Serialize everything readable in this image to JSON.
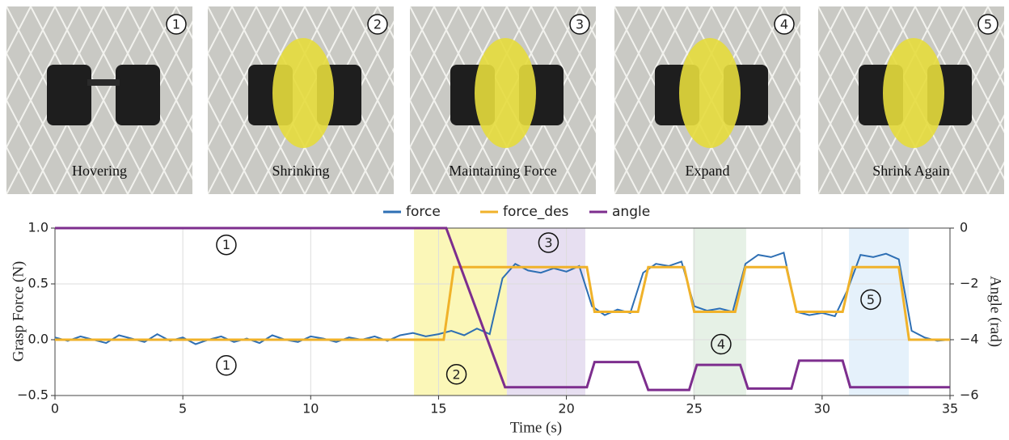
{
  "panels": [
    {
      "step": "1",
      "caption": "Hovering"
    },
    {
      "step": "2",
      "caption": "Shrinking"
    },
    {
      "step": "3",
      "caption": "Maintaining Force"
    },
    {
      "step": "4",
      "caption": "Expand"
    },
    {
      "step": "5",
      "caption": "Shrink Again"
    }
  ],
  "chart_data": {
    "type": "line",
    "x_label": "Time (s)",
    "y_label": "Grasp Force (N)",
    "y2_label": "Angle (rad)",
    "x": [
      0,
      0.5,
      1,
      1.5,
      2,
      2.5,
      3,
      3.5,
      4,
      4.5,
      5,
      5.5,
      6,
      6.5,
      7,
      7.5,
      8,
      8.5,
      9,
      9.5,
      10,
      10.5,
      11,
      11.5,
      12,
      12.5,
      13,
      13.5,
      14,
      14.5,
      15,
      15.5,
      16,
      16.5,
      17,
      17.5,
      18,
      18.5,
      19,
      19.5,
      20,
      20.5,
      21,
      21.5,
      22,
      22.5,
      23,
      23.5,
      24,
      24.5,
      25,
      25.5,
      26,
      26.5,
      27,
      27.5,
      28,
      28.5,
      29,
      29.5,
      30,
      30.5,
      31,
      31.5,
      32,
      32.5,
      33,
      33.5,
      34,
      34.5,
      35
    ],
    "series": [
      {
        "name": "force",
        "color": "#2e6fb4",
        "values": [
          0.02,
          -0.01,
          0.03,
          0.0,
          -0.03,
          0.04,
          0.01,
          -0.02,
          0.05,
          -0.01,
          0.02,
          -0.04,
          0.0,
          0.03,
          -0.02,
          0.01,
          -0.03,
          0.04,
          0.0,
          -0.02,
          0.03,
          0.01,
          -0.02,
          0.02,
          0.0,
          0.03,
          -0.01,
          0.04,
          0.06,
          0.03,
          0.05,
          0.08,
          0.04,
          0.1,
          0.05,
          0.55,
          0.68,
          0.62,
          0.6,
          0.64,
          0.61,
          0.66,
          0.3,
          0.22,
          0.27,
          0.24,
          0.6,
          0.68,
          0.66,
          0.7,
          0.3,
          0.26,
          0.28,
          0.25,
          0.68,
          0.76,
          0.74,
          0.78,
          0.25,
          0.22,
          0.24,
          0.21,
          0.45,
          0.76,
          0.74,
          0.77,
          0.72,
          0.08,
          0.02,
          -0.01,
          0.0
        ]
      },
      {
        "name": "force_des",
        "color": "#f0b22a",
        "x": [
          0,
          15.2,
          15.6,
          20.8,
          21.1,
          22.8,
          23.2,
          24.6,
          25.0,
          26.6,
          27.0,
          28.6,
          29.0,
          30.8,
          31.2,
          33.0,
          33.4,
          35
        ],
        "values": [
          0,
          0,
          0.65,
          0.65,
          0.25,
          0.25,
          0.65,
          0.65,
          0.25,
          0.25,
          0.65,
          0.65,
          0.25,
          0.25,
          0.65,
          0.65,
          0,
          0
        ]
      },
      {
        "name": "angle",
        "color": "#7d2e8e",
        "axis": "y2",
        "x": [
          0,
          15.3,
          17.6,
          20.8,
          21.1,
          22.8,
          23.2,
          24.8,
          25.1,
          26.8,
          27.1,
          28.8,
          29.1,
          30.8,
          31.1,
          35
        ],
        "values": [
          0,
          0,
          -5.7,
          -5.7,
          -4.8,
          -4.8,
          -5.8,
          -5.8,
          -4.9,
          -4.9,
          -5.75,
          -5.75,
          -4.75,
          -4.75,
          -5.7,
          -5.7
        ]
      }
    ],
    "regions": [
      {
        "x": [
          14.04,
          17.67
        ],
        "color": "#fbf6b0"
      },
      {
        "x": [
          17.67,
          20.74
        ],
        "color": "#e4dcef"
      },
      {
        "x": [
          24.95,
          27.03
        ],
        "color": "#e3efe3"
      },
      {
        "x": [
          31.05,
          33.39
        ],
        "color": "#e2effb"
      }
    ],
    "annotations": [
      {
        "text": "1",
        "x": 6.7,
        "y": 0.85
      },
      {
        "text": "1",
        "x": 6.7,
        "y": -0.23
      },
      {
        "text": "2",
        "x": 15.7,
        "y": -0.31
      },
      {
        "text": "3",
        "x": 19.3,
        "y": 0.87
      },
      {
        "text": "4",
        "x": 26.05,
        "y": -0.04
      },
      {
        "text": "5",
        "x": 31.9,
        "y": 0.36
      }
    ],
    "xlim": [
      0,
      35
    ],
    "xticks": [
      0,
      5,
      10,
      15,
      20,
      25,
      30,
      35
    ],
    "ylim": [
      -0.5,
      1.0
    ],
    "yticks": [
      {
        "value": -0.5,
        "label": "−0.5"
      },
      {
        "value": 0,
        "label": "0.0"
      },
      0.5,
      {
        "value": 1,
        "label": "1.0"
      }
    ],
    "y2lim": [
      -6,
      0
    ],
    "y2ticks": [
      {
        "value": -6,
        "label": "−6"
      },
      {
        "value": -4,
        "label": "−4"
      },
      {
        "value": -2,
        "label": "−2"
      },
      0
    ],
    "grid": true,
    "legend": "top"
  }
}
